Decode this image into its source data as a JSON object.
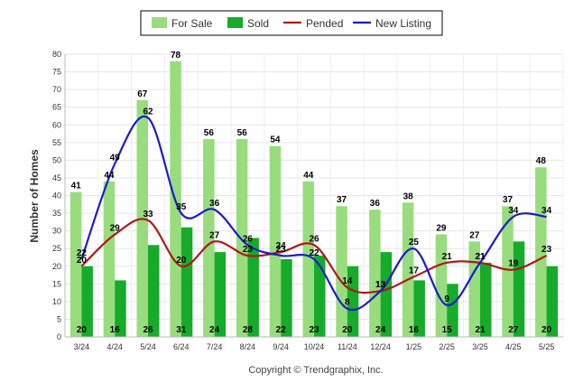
{
  "chart_data": {
    "type": "bar",
    "ylabel": "Number of Homes",
    "ylim": [
      0,
      80
    ],
    "ytick_step": 5,
    "categories": [
      "3/24",
      "4/24",
      "5/24",
      "6/24",
      "7/24",
      "8/24",
      "9/24",
      "10/24",
      "11/24",
      "12/24",
      "1/25",
      "2/25",
      "3/25",
      "4/25",
      "5/25"
    ],
    "series": [
      {
        "name": "For Sale",
        "kind": "bar",
        "color": "#98dc7e",
        "values": [
          41,
          44,
          67,
          78,
          56,
          56,
          54,
          44,
          37,
          36,
          38,
          29,
          27,
          37,
          48
        ]
      },
      {
        "name": "Sold",
        "kind": "bar",
        "color": "#16ab2a",
        "values": [
          20,
          16,
          26,
          31,
          24,
          28,
          22,
          23,
          20,
          24,
          16,
          15,
          21,
          27,
          20
        ]
      },
      {
        "name": "Pended",
        "kind": "line",
        "color": "#b01818",
        "values": [
          20,
          29,
          33,
          20,
          27,
          23,
          24,
          26,
          14,
          13,
          17,
          21,
          21,
          19,
          23
        ]
      },
      {
        "name": "New Listing",
        "kind": "line",
        "color": "#1a1ad0",
        "values": [
          22,
          49,
          62,
          35,
          36,
          26,
          23,
          22,
          8,
          13,
          25,
          9,
          21,
          34,
          34
        ]
      }
    ],
    "legend_position": "top-center",
    "grid": true,
    "credit": "Copyright © Trendgraphix, Inc."
  }
}
